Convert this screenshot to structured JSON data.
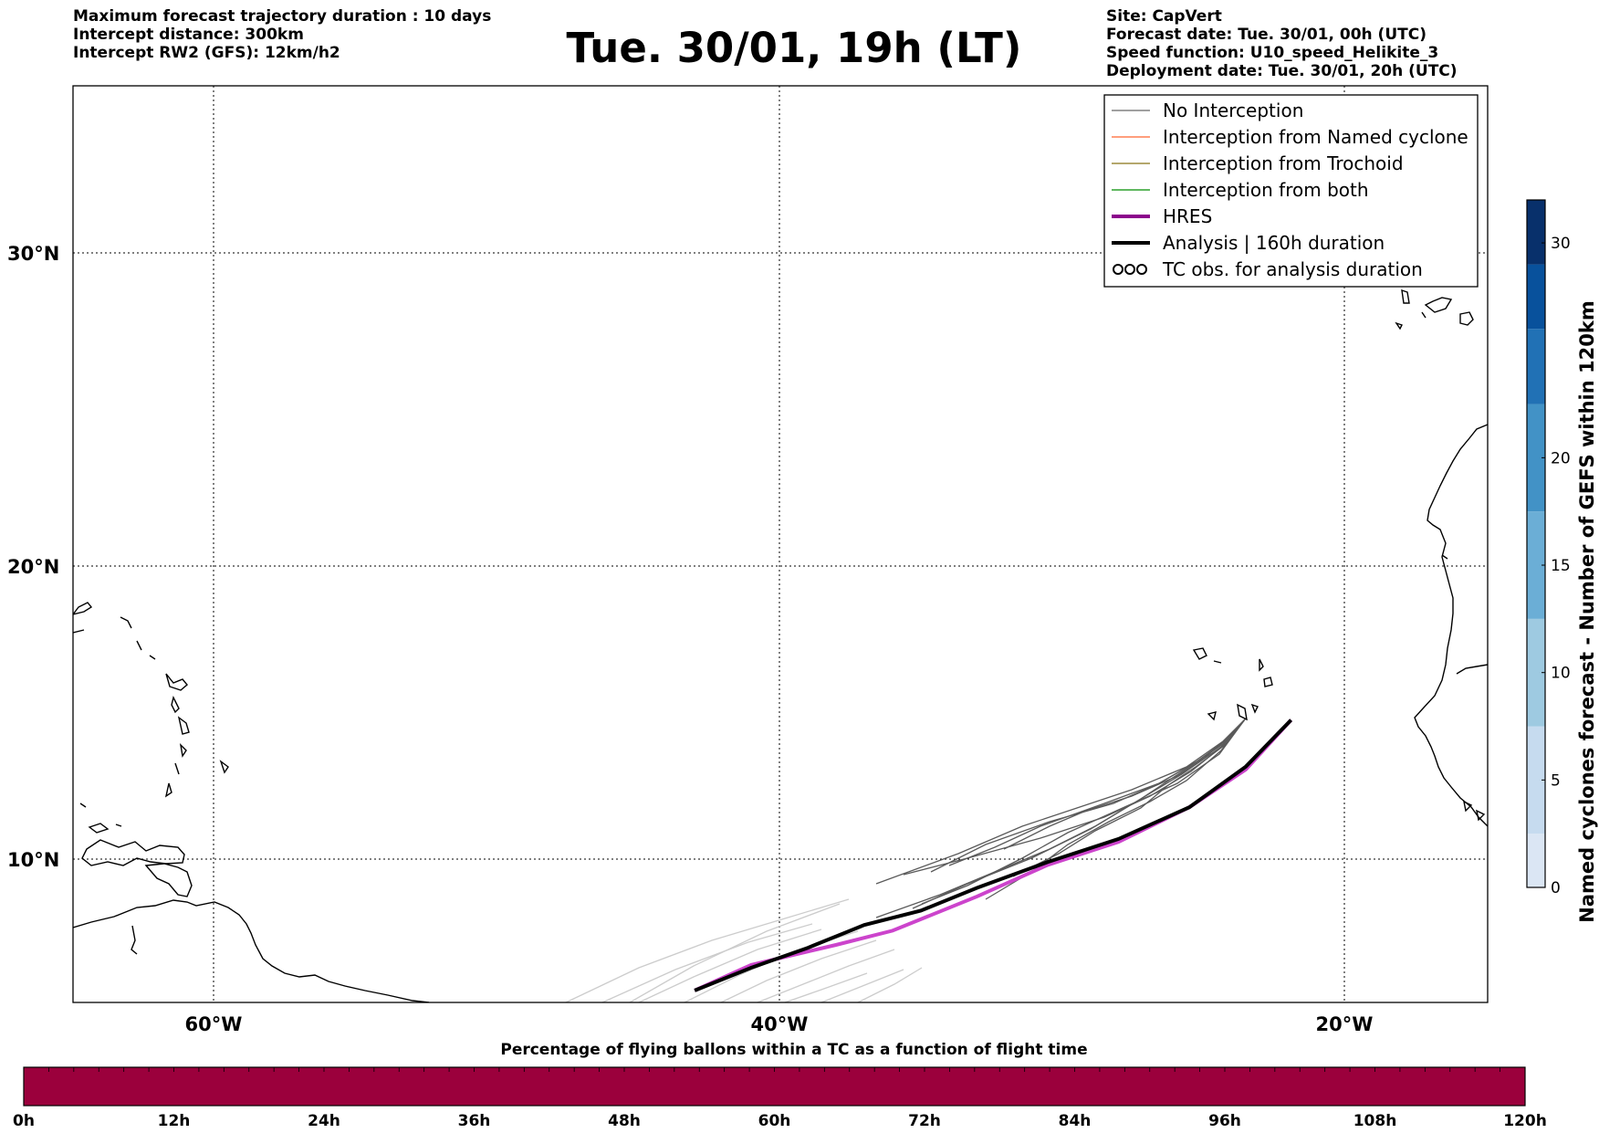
{
  "header_left": [
    "Maximum forecast trajectory duration : 10 days",
    "Intercept distance: 300km",
    "Intercept RW2 (GFS):  12km/h2"
  ],
  "title": "Tue. 30/01, 19h (LT)",
  "header_right": [
    "Site: CapVert",
    "Forecast date: Tue. 30/01, 00h (UTC)",
    "Speed function: U10_speed_Helikite_3",
    "Deployment date: Tue. 30/01, 20h (UTC)"
  ],
  "map": {
    "lat_ticks": [
      "30°N",
      "20°N",
      "10°N"
    ],
    "lon_ticks": [
      "60°W",
      "40°W",
      "20°W"
    ],
    "extent": {
      "lon": [
        -65,
        -15
      ],
      "lat": [
        5.4,
        34.8
      ]
    }
  },
  "legend": [
    {
      "label": "No Interception",
      "color": "#808080",
      "kind": "line"
    },
    {
      "label": "Interception from Named cyclone",
      "color": "#ff7f50",
      "kind": "line"
    },
    {
      "label": "Interception from Trochoid",
      "color": "#9c8a3c",
      "kind": "line"
    },
    {
      "label": "Interception from both",
      "color": "#2ca02c",
      "kind": "line"
    },
    {
      "label": "HRES",
      "color": "#8b008b",
      "kind": "thick"
    },
    {
      "label": "Analysis | 160h duration",
      "color": "#000000",
      "kind": "thick"
    },
    {
      "label": "TC obs. for analysis duration",
      "color": "#000000",
      "kind": "symbol"
    }
  ],
  "colorbar": {
    "label": "Named cyclones forecast - Number of GEFS within 120km",
    "ticks": [
      "0",
      "5",
      "10",
      "15",
      "20",
      "30"
    ],
    "tick_values": [
      0,
      5,
      10,
      15,
      20,
      30
    ],
    "range": [
      0,
      32
    ],
    "colors": [
      "#dbe6f4",
      "#c6dbef",
      "#9ecae1",
      "#6baed6",
      "#4292c6",
      "#2171b5",
      "#08519c",
      "#08306b"
    ]
  },
  "time_bar": {
    "title": "Percentage of flying ballons within a TC as a function of flight time",
    "ticks": [
      "0h",
      "12h",
      "24h",
      "36h",
      "48h",
      "60h",
      "72h",
      "84h",
      "96h",
      "108h",
      "120h"
    ],
    "fill_color": "#9b003c"
  },
  "trajectories": {
    "analysis": [
      [
        -21.9,
        14.8
      ],
      [
        -23.5,
        13.2
      ],
      [
        -25.5,
        11.8
      ],
      [
        -28,
        10.7
      ],
      [
        -30.5,
        9.9
      ],
      [
        -33,
        9.0
      ],
      [
        -35,
        8.2
      ],
      [
        -37,
        7.7
      ],
      [
        -39,
        6.9
      ],
      [
        -41,
        6.2
      ],
      [
        -43,
        5.4
      ]
    ],
    "hres": [
      [
        -21.9,
        14.8
      ],
      [
        -23.5,
        13.1
      ],
      [
        -25.5,
        11.8
      ],
      [
        -28,
        10.6
      ],
      [
        -30.5,
        9.8
      ],
      [
        -33,
        8.7
      ],
      [
        -36,
        7.5
      ],
      [
        -38,
        7.0
      ],
      [
        -41,
        6.3
      ],
      [
        -43,
        5.4
      ]
    ]
  }
}
